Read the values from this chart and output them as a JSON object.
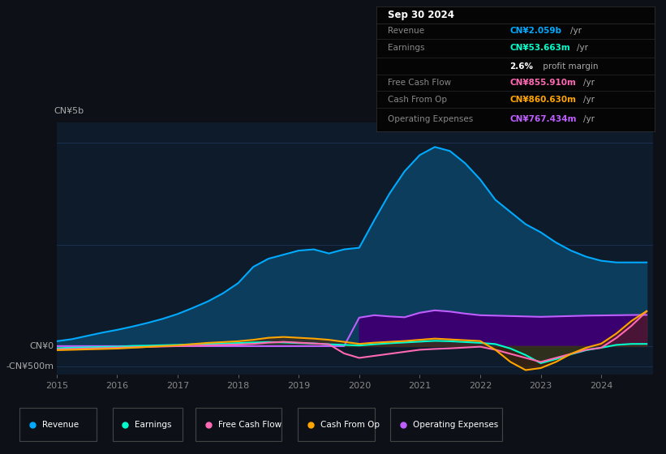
{
  "bg_color": "#0d1117",
  "plot_bg_color": "#0d1b2a",
  "grid_color": "#1e3a5f",
  "title_box": {
    "date": "Sep 30 2024",
    "rows": [
      {
        "label": "Revenue",
        "value": "CN¥2.059b",
        "unit": "/yr",
        "value_color": "#00aaff"
      },
      {
        "label": "Earnings",
        "value": "CN¥53.663m",
        "unit": "/yr",
        "value_color": "#00ffcc"
      },
      {
        "label": "",
        "value": "2.6%",
        "unit": " profit margin",
        "value_color": "#ffffff"
      },
      {
        "label": "Free Cash Flow",
        "value": "CN¥855.910m",
        "unit": "/yr",
        "value_color": "#ff69b4"
      },
      {
        "label": "Cash From Op",
        "value": "CN¥860.630m",
        "unit": "/yr",
        "value_color": "#ffa500"
      },
      {
        "label": "Operating Expenses",
        "value": "CN¥767.434m",
        "unit": "/yr",
        "value_color": "#bf5fff"
      }
    ]
  },
  "ylabel_top": "CN¥5b",
  "ylabel_zero": "CN¥0",
  "ylabel_neg": "-CN¥500m",
  "ylim": [
    -700000000,
    5500000000
  ],
  "years": [
    2015.0,
    2015.25,
    2015.5,
    2015.75,
    2016.0,
    2016.25,
    2016.5,
    2016.75,
    2017.0,
    2017.25,
    2017.5,
    2017.75,
    2018.0,
    2018.25,
    2018.5,
    2018.75,
    2019.0,
    2019.25,
    2019.5,
    2019.75,
    2020.0,
    2020.25,
    2020.5,
    2020.75,
    2021.0,
    2021.25,
    2021.5,
    2021.75,
    2022.0,
    2022.25,
    2022.5,
    2022.75,
    2023.0,
    2023.25,
    2023.5,
    2023.75,
    2024.0,
    2024.25,
    2024.5,
    2024.75
  ],
  "revenue": [
    120000000,
    170000000,
    250000000,
    330000000,
    400000000,
    480000000,
    570000000,
    670000000,
    790000000,
    940000000,
    1100000000,
    1300000000,
    1550000000,
    1950000000,
    2150000000,
    2250000000,
    2350000000,
    2380000000,
    2280000000,
    2380000000,
    2420000000,
    3100000000,
    3750000000,
    4300000000,
    4700000000,
    4900000000,
    4800000000,
    4500000000,
    4100000000,
    3600000000,
    3300000000,
    3000000000,
    2800000000,
    2550000000,
    2350000000,
    2200000000,
    2100000000,
    2059000000,
    2059000000,
    2059000000
  ],
  "earnings": [
    -50000000,
    -40000000,
    -30000000,
    -20000000,
    -15000000,
    5000000,
    12000000,
    22000000,
    32000000,
    45000000,
    55000000,
    65000000,
    75000000,
    90000000,
    100000000,
    90000000,
    75000000,
    65000000,
    45000000,
    30000000,
    15000000,
    45000000,
    70000000,
    90000000,
    110000000,
    130000000,
    120000000,
    100000000,
    80000000,
    50000000,
    -60000000,
    -220000000,
    -420000000,
    -320000000,
    -200000000,
    -100000000,
    -40000000,
    30000000,
    53663000,
    53663000
  ],
  "free_cash_flow": [
    -80000000,
    -70000000,
    -60000000,
    -50000000,
    -40000000,
    -30000000,
    -20000000,
    -10000000,
    0,
    10000000,
    20000000,
    30000000,
    40000000,
    55000000,
    85000000,
    105000000,
    85000000,
    65000000,
    45000000,
    -180000000,
    -290000000,
    -240000000,
    -190000000,
    -140000000,
    -90000000,
    -70000000,
    -55000000,
    -35000000,
    -15000000,
    -90000000,
    -190000000,
    -290000000,
    -390000000,
    -290000000,
    -190000000,
    -90000000,
    -40000000,
    200000000,
    500000000,
    855910000
  ],
  "cash_from_op": [
    -100000000,
    -90000000,
    -80000000,
    -70000000,
    -60000000,
    -40000000,
    -20000000,
    0,
    20000000,
    50000000,
    80000000,
    100000000,
    120000000,
    155000000,
    205000000,
    225000000,
    205000000,
    185000000,
    155000000,
    105000000,
    55000000,
    85000000,
    105000000,
    125000000,
    155000000,
    185000000,
    165000000,
    145000000,
    125000000,
    -90000000,
    -390000000,
    -590000000,
    -540000000,
    -390000000,
    -190000000,
    -40000000,
    60000000,
    310000000,
    620000000,
    860630000
  ],
  "op_expenses": [
    0,
    0,
    0,
    0,
    0,
    0,
    0,
    0,
    0,
    0,
    0,
    0,
    0,
    0,
    0,
    0,
    0,
    0,
    0,
    0,
    700000000,
    760000000,
    730000000,
    710000000,
    820000000,
    880000000,
    850000000,
    800000000,
    760000000,
    750000000,
    740000000,
    730000000,
    720000000,
    730000000,
    740000000,
    750000000,
    755000000,
    760000000,
    765000000,
    767434000
  ],
  "revenue_color": "#00aaff",
  "revenue_fill": "#0d3d5c",
  "earnings_color": "#00ffcc",
  "free_cash_flow_color": "#ff69b4",
  "cash_from_op_color": "#ffa500",
  "op_expenses_color": "#bf5fff",
  "op_expenses_fill": "#3a006f",
  "legend_items": [
    {
      "label": "Revenue",
      "color": "#00aaff"
    },
    {
      "label": "Earnings",
      "color": "#00ffcc"
    },
    {
      "label": "Free Cash Flow",
      "color": "#ff69b4"
    },
    {
      "label": "Cash From Op",
      "color": "#ffa500"
    },
    {
      "label": "Operating Expenses",
      "color": "#bf5fff"
    }
  ]
}
